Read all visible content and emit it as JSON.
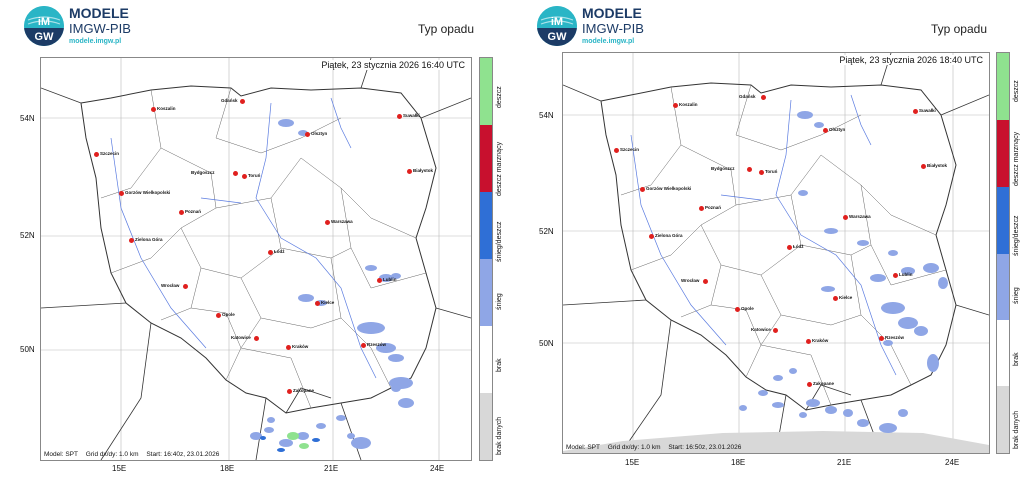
{
  "brand": {
    "title": "MODELE",
    "subtitle": "IMGW-PIB",
    "url": "modele.imgw.pl",
    "badge_top": "iM",
    "badge_bottom": "GW"
  },
  "colors": {
    "deszcz": "#8fe28f",
    "deszcz_marznacy": "#c8102e",
    "snieg_deszcz": "#2f6fd6",
    "snieg": "#8fa6e6",
    "brak": "#ffffff",
    "brak_danych": "#d8d8d8"
  },
  "panels": [
    {
      "title": "Typ opadu",
      "timestamp": "Piątek, 23 stycznia 2026 16:40 UTC",
      "footer": {
        "model": "Model: SPT",
        "grid": "Grid dx/dy: 1.0 km",
        "start": "Start: 16:40z, 23.01.2026"
      },
      "lat_labels": [
        "54N",
        "52N",
        "50N"
      ],
      "lon_labels": [
        "15E",
        "18E",
        "21E",
        "24E"
      ],
      "legend": [
        "deszcz",
        "deszcz marznący",
        "śnieg/deszcz",
        "śnieg",
        "brak",
        "brak danych"
      ],
      "cities": [
        "Koszalin",
        "Gdańsk",
        "Suwałki",
        "Olsztyn",
        "Szczecin",
        "Bydgoszcz",
        "Toruń",
        "Białystok",
        "Gorzów Wielkopolski",
        "Poznań",
        "Warszawa",
        "Zielona Góra",
        "Łódź",
        "Lublin",
        "Wrocław",
        "Kielce",
        "Opole",
        "Katowice",
        "Kraków",
        "Rzeszów",
        "Zakopane"
      ]
    },
    {
      "title": "Typ opadu",
      "timestamp": "Piątek, 23 stycznia 2026 18:40 UTC",
      "footer": {
        "model": "Model: SPT",
        "grid": "Grid dx/dy: 1.0 km",
        "start": "Start: 16:50z, 23.01.2026"
      },
      "lat_labels": [
        "54N",
        "52N",
        "50N"
      ],
      "lon_labels": [
        "15E",
        "18E",
        "21E",
        "24E"
      ],
      "legend": [
        "deszcz",
        "deszcz marznący",
        "śnieg/deszcz",
        "śnieg",
        "brak",
        "brak danych"
      ],
      "cities": [
        "Koszalin",
        "Gdańsk",
        "Suwałki",
        "Olsztyn",
        "Szczecin",
        "Bydgoszcz",
        "Toruń",
        "Białystok",
        "Gorzów Wielkopolski",
        "Poznań",
        "Warszawa",
        "Zielona Góra",
        "Łódź",
        "Lublin",
        "Wrocław",
        "Kielce",
        "Opole",
        "Katowice",
        "Kraków",
        "Rzeszów",
        "Zakopane"
      ]
    }
  ]
}
